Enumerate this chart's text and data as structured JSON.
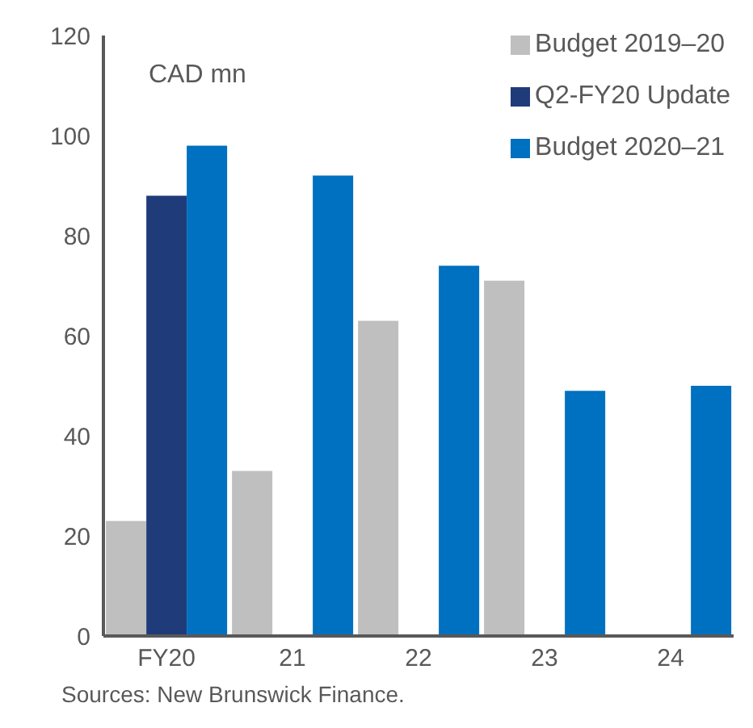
{
  "chart_data": {
    "type": "bar",
    "ylabel": "CAD mn",
    "categories": [
      "FY20",
      "21",
      "22",
      "23",
      "24"
    ],
    "series": [
      {
        "name": "Budget 2019–20",
        "color": "#bfbfbf",
        "values": [
          23,
          33,
          63,
          71,
          null
        ]
      },
      {
        "name": "Q2-FY20 Update",
        "color": "#1f3b7a",
        "values": [
          88,
          null,
          null,
          null,
          null
        ]
      },
      {
        "name": "Budget 2020–21",
        "color": "#0070c0",
        "values": [
          98,
          92,
          74,
          49,
          50
        ]
      }
    ],
    "ylim": [
      0,
      120
    ],
    "yticks": [
      0,
      20,
      40,
      60,
      80,
      100,
      120
    ],
    "grid": false,
    "legend": "top right",
    "annotations": [
      "Sources: New Brunswick Finance."
    ]
  }
}
